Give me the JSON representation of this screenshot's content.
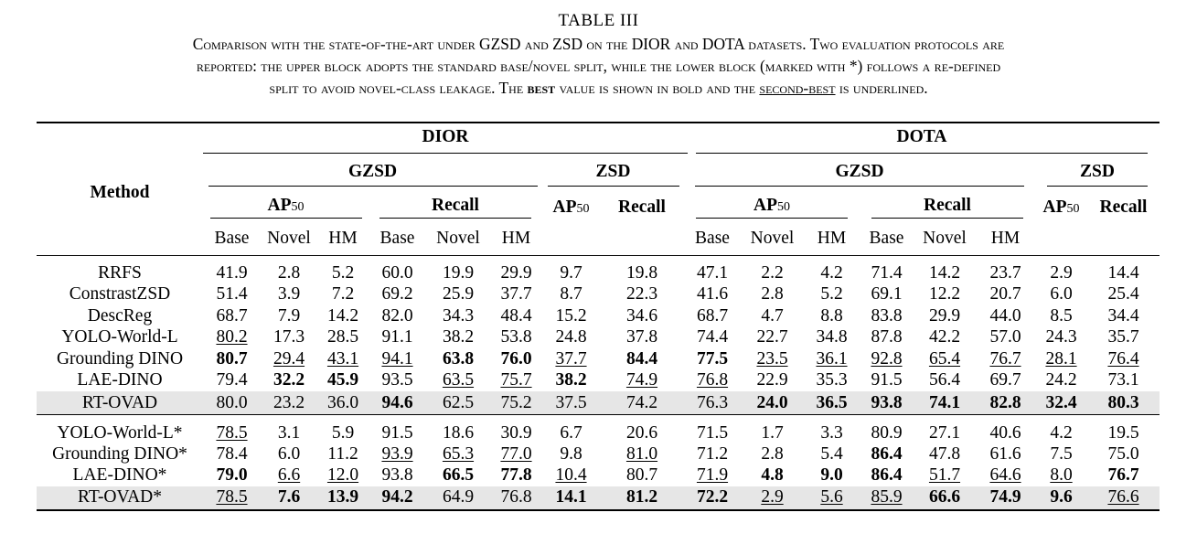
{
  "caption": {
    "label": "TABLE III",
    "line1_a": "Comparison with the state-of-the-art under GZSD and ZSD on the DIOR and DOTA datasets. Two evaluation protocols are",
    "line2": "reported: the upper block adopts the standard base/novel split, while the lower block (marked with *) follows a re-defined",
    "line3_a": "split to avoid novel-class leakage. The ",
    "line3_best": "best",
    "line3_b": " value is shown in bold and the ",
    "line3_second": "second-best",
    "line3_c": " is underlined."
  },
  "header": {
    "method": "Method",
    "datasets": [
      "DIOR",
      "DOTA"
    ],
    "gzsd": "GZSD",
    "zsd": "ZSD",
    "ap": "AP",
    "ap_sub": "50",
    "recall": "Recall",
    "cols": [
      "Base",
      "Novel",
      "HM",
      "Base",
      "Novel",
      "HM"
    ]
  },
  "block_standard": [
    {
      "method": "RRFS",
      "cells": [
        [
          "41.9",
          ""
        ],
        [
          "2.8",
          ""
        ],
        [
          "5.2",
          ""
        ],
        [
          "60.0",
          ""
        ],
        [
          "19.9",
          ""
        ],
        [
          "29.9",
          ""
        ],
        [
          "9.7",
          ""
        ],
        [
          "19.8",
          ""
        ],
        [
          "47.1",
          ""
        ],
        [
          "2.2",
          ""
        ],
        [
          "4.2",
          ""
        ],
        [
          "71.4",
          ""
        ],
        [
          "14.2",
          ""
        ],
        [
          "23.7",
          ""
        ],
        [
          "2.9",
          ""
        ],
        [
          "14.4",
          ""
        ]
      ]
    },
    {
      "method": "ConstrastZSD",
      "cells": [
        [
          "51.4",
          ""
        ],
        [
          "3.9",
          ""
        ],
        [
          "7.2",
          ""
        ],
        [
          "69.2",
          ""
        ],
        [
          "25.9",
          ""
        ],
        [
          "37.7",
          ""
        ],
        [
          "8.7",
          ""
        ],
        [
          "22.3",
          ""
        ],
        [
          "41.6",
          ""
        ],
        [
          "2.8",
          ""
        ],
        [
          "5.2",
          ""
        ],
        [
          "69.1",
          ""
        ],
        [
          "12.2",
          ""
        ],
        [
          "20.7",
          ""
        ],
        [
          "6.0",
          ""
        ],
        [
          "25.4",
          ""
        ]
      ]
    },
    {
      "method": "DescReg",
      "cells": [
        [
          "68.7",
          ""
        ],
        [
          "7.9",
          ""
        ],
        [
          "14.2",
          ""
        ],
        [
          "82.0",
          ""
        ],
        [
          "34.3",
          ""
        ],
        [
          "48.4",
          ""
        ],
        [
          "15.2",
          ""
        ],
        [
          "34.6",
          ""
        ],
        [
          "68.7",
          ""
        ],
        [
          "4.7",
          ""
        ],
        [
          "8.8",
          ""
        ],
        [
          "83.8",
          ""
        ],
        [
          "29.9",
          ""
        ],
        [
          "44.0",
          ""
        ],
        [
          "8.5",
          ""
        ],
        [
          "34.4",
          ""
        ]
      ]
    },
    {
      "method": "YOLO-World-L",
      "cells": [
        [
          "80.2",
          "u"
        ],
        [
          "17.3",
          ""
        ],
        [
          "28.5",
          ""
        ],
        [
          "91.1",
          ""
        ],
        [
          "38.2",
          ""
        ],
        [
          "53.8",
          ""
        ],
        [
          "24.8",
          ""
        ],
        [
          "37.8",
          ""
        ],
        [
          "74.4",
          ""
        ],
        [
          "22.7",
          ""
        ],
        [
          "34.8",
          ""
        ],
        [
          "87.8",
          ""
        ],
        [
          "42.2",
          ""
        ],
        [
          "57.0",
          ""
        ],
        [
          "24.3",
          ""
        ],
        [
          "35.7",
          ""
        ]
      ]
    },
    {
      "method": "Grounding DINO",
      "cells": [
        [
          "80.7",
          "b"
        ],
        [
          "29.4",
          "u"
        ],
        [
          "43.1",
          "u"
        ],
        [
          "94.1",
          "u"
        ],
        [
          "63.8",
          "b"
        ],
        [
          "76.0",
          "b"
        ],
        [
          "37.7",
          "u"
        ],
        [
          "84.4",
          "b"
        ],
        [
          "77.5",
          "b"
        ],
        [
          "23.5",
          "u"
        ],
        [
          "36.1",
          "u"
        ],
        [
          "92.8",
          "u"
        ],
        [
          "65.4",
          "u"
        ],
        [
          "76.7",
          "u"
        ],
        [
          "28.1",
          "u"
        ],
        [
          "76.4",
          "u"
        ]
      ]
    },
    {
      "method": "LAE-DINO",
      "cells": [
        [
          "79.4",
          ""
        ],
        [
          "32.2",
          "b"
        ],
        [
          "45.9",
          "b"
        ],
        [
          "93.5",
          ""
        ],
        [
          "63.5",
          "u"
        ],
        [
          "75.7",
          "u"
        ],
        [
          "38.2",
          "b"
        ],
        [
          "74.9",
          "u"
        ],
        [
          "76.8",
          "u"
        ],
        [
          "22.9",
          ""
        ],
        [
          "35.3",
          ""
        ],
        [
          "91.5",
          ""
        ],
        [
          "56.4",
          ""
        ],
        [
          "69.7",
          ""
        ],
        [
          "24.2",
          ""
        ],
        [
          "73.1",
          ""
        ]
      ]
    },
    {
      "method": "RT-OVAD",
      "hl": true,
      "cells": [
        [
          "80.0",
          ""
        ],
        [
          "23.2",
          ""
        ],
        [
          "36.0",
          ""
        ],
        [
          "94.6",
          "b"
        ],
        [
          "62.5",
          ""
        ],
        [
          "75.2",
          ""
        ],
        [
          "37.5",
          ""
        ],
        [
          "74.2",
          ""
        ],
        [
          "76.3",
          ""
        ],
        [
          "24.0",
          "b"
        ],
        [
          "36.5",
          "b"
        ],
        [
          "93.8",
          "b"
        ],
        [
          "74.1",
          "b"
        ],
        [
          "82.8",
          "b"
        ],
        [
          "32.4",
          "b"
        ],
        [
          "80.3",
          "b"
        ]
      ]
    }
  ],
  "block_redefined": [
    {
      "method": "YOLO-World-L*",
      "cells": [
        [
          "78.5",
          "u"
        ],
        [
          "3.1",
          ""
        ],
        [
          "5.9",
          ""
        ],
        [
          "91.5",
          ""
        ],
        [
          "18.6",
          ""
        ],
        [
          "30.9",
          ""
        ],
        [
          "6.7",
          ""
        ],
        [
          "20.6",
          ""
        ],
        [
          "71.5",
          ""
        ],
        [
          "1.7",
          ""
        ],
        [
          "3.3",
          ""
        ],
        [
          "80.9",
          ""
        ],
        [
          "27.1",
          ""
        ],
        [
          "40.6",
          ""
        ],
        [
          "4.2",
          ""
        ],
        [
          "19.5",
          ""
        ]
      ]
    },
    {
      "method": "Grounding DINO*",
      "cells": [
        [
          "78.4",
          ""
        ],
        [
          "6.0",
          ""
        ],
        [
          "11.2",
          ""
        ],
        [
          "93.9",
          "u"
        ],
        [
          "65.3",
          "u"
        ],
        [
          "77.0",
          "u"
        ],
        [
          "9.8",
          ""
        ],
        [
          "81.0",
          "u"
        ],
        [
          "71.2",
          ""
        ],
        [
          "2.8",
          ""
        ],
        [
          "5.4",
          ""
        ],
        [
          "86.4",
          "b"
        ],
        [
          "47.8",
          ""
        ],
        [
          "61.6",
          ""
        ],
        [
          "7.5",
          ""
        ],
        [
          "75.0",
          ""
        ]
      ]
    },
    {
      "method": "LAE-DINO*",
      "cells": [
        [
          "79.0",
          "b"
        ],
        [
          "6.6",
          "u"
        ],
        [
          "12.0",
          "u"
        ],
        [
          "93.8",
          ""
        ],
        [
          "66.5",
          "b"
        ],
        [
          "77.8",
          "b"
        ],
        [
          "10.4",
          "u"
        ],
        [
          "80.7",
          ""
        ],
        [
          "71.9",
          "u"
        ],
        [
          "4.8",
          "b"
        ],
        [
          "9.0",
          "b"
        ],
        [
          "86.4",
          "b"
        ],
        [
          "51.7",
          "u"
        ],
        [
          "64.6",
          "u"
        ],
        [
          "8.0",
          "u"
        ],
        [
          "76.7",
          "b"
        ]
      ]
    },
    {
      "method": "RT-OVAD*",
      "hl": true,
      "cells": [
        [
          "78.5",
          "u"
        ],
        [
          "7.6",
          "b"
        ],
        [
          "13.9",
          "b"
        ],
        [
          "94.2",
          "b"
        ],
        [
          "64.9",
          ""
        ],
        [
          "76.8",
          ""
        ],
        [
          "14.1",
          "b"
        ],
        [
          "81.2",
          "b"
        ],
        [
          "72.2",
          "b"
        ],
        [
          "2.9",
          "u"
        ],
        [
          "5.6",
          "u"
        ],
        [
          "85.9",
          "u"
        ],
        [
          "66.6",
          "b"
        ],
        [
          "74.9",
          "b"
        ],
        [
          "9.6",
          "b"
        ],
        [
          "76.6",
          "u"
        ]
      ]
    }
  ]
}
